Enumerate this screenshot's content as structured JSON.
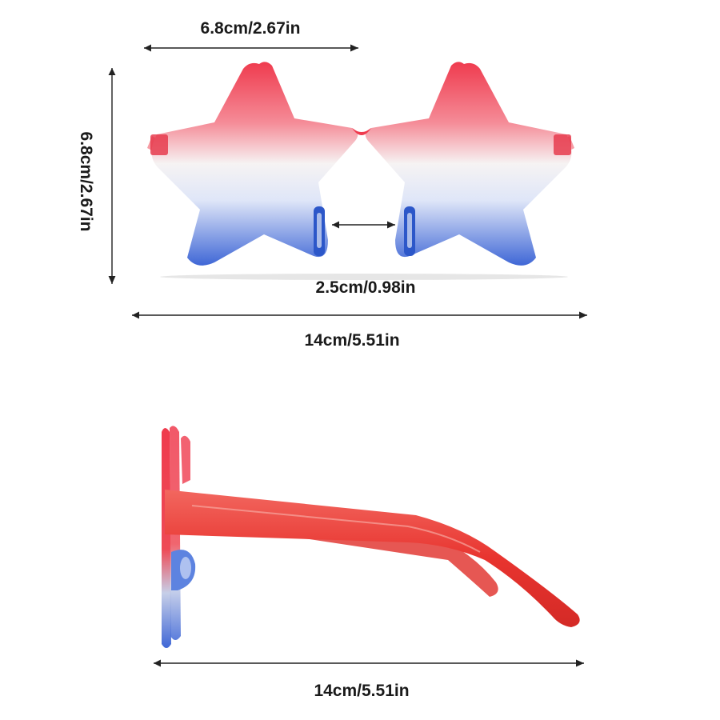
{
  "dimensions": {
    "lens_width": "6.8cm/2.67in",
    "lens_height": "6.8cm/2.67in",
    "bridge_width": "2.5cm/0.98in",
    "front_width": "14cm/5.51in",
    "temple_length": "14cm/5.51in"
  },
  "colors": {
    "frame_red": "#ef3b4e",
    "lens_white": "#f6f3f3",
    "lens_blue": "#3f67d6",
    "temple_red": "#e8342f",
    "label": "#1a1a1a"
  },
  "icons": {
    "front_view": "star-sunglasses-front",
    "side_view": "star-sunglasses-side"
  }
}
